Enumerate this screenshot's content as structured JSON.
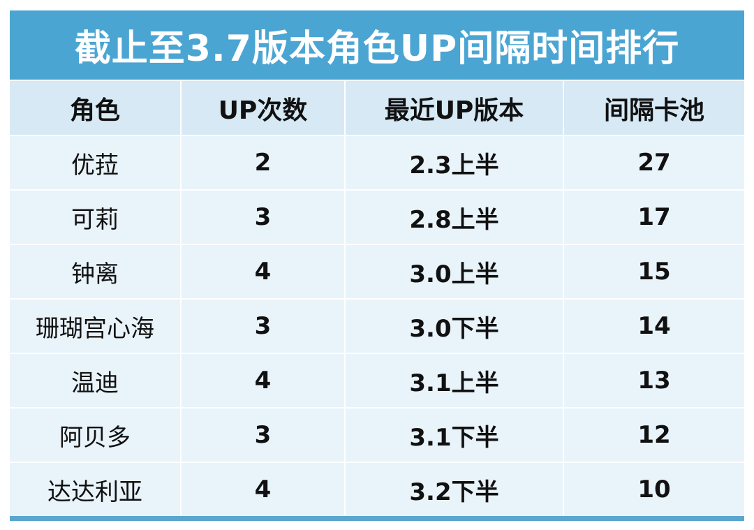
{
  "title": "截止至3.7版本角色UP间隔时间排行",
  "headers": [
    "角色",
    "UP次数",
    "最近UP版本",
    "间隔卡池"
  ],
  "rows": [
    {
      "name": "优菈",
      "count": "2",
      "version": "2.3上半",
      "interval": "27"
    },
    {
      "name": "可莉",
      "count": "3",
      "version": "2.8上半",
      "interval": "17"
    },
    {
      "name": "钟离",
      "count": "4",
      "version": "3.0上半",
      "interval": "15"
    },
    {
      "name": "珊瑚宫心海",
      "count": "3",
      "version": "3.0下半",
      "interval": "14"
    },
    {
      "name": "温迪",
      "count": "4",
      "version": "3.1上半",
      "interval": "13"
    },
    {
      "name": "阿贝多",
      "count": "3",
      "version": "3.1下半",
      "interval": "12"
    },
    {
      "name": "达达利亚",
      "count": "4",
      "version": "3.2下半",
      "interval": "10"
    }
  ],
  "colors": {
    "title_bg": "#4aa5d3",
    "header_bg": "#d6e9f5",
    "cell_bg": "#e9f3fa"
  }
}
